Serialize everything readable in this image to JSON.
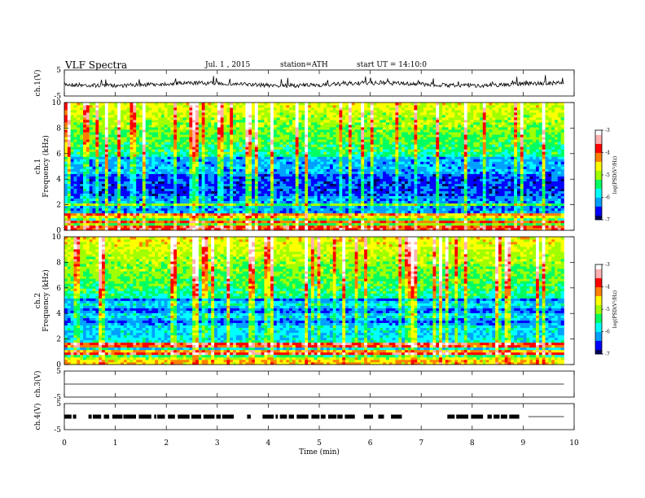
{
  "header": {
    "title": "VLF Spectra",
    "date": "Jul. 1 , 2015",
    "station": "station=ATH",
    "start": "start UT = 14:10:0"
  },
  "chart_data": [
    {
      "type": "line",
      "panel": "ch1-waveform",
      "ylabel": "ch.1(V)",
      "y_ticks": [
        "5",
        "-5"
      ],
      "ylim": [
        -5,
        5
      ],
      "xlim": [
        0,
        10
      ],
      "data_end_min": 9.8,
      "baseline_v": -0.5,
      "color": "#000000"
    },
    {
      "type": "heatmap",
      "panel": "ch1-spectrogram",
      "ylabel": "ch.1 Frequency (kHz)",
      "y_ticks": [
        "0",
        "2",
        "4",
        "6",
        "8",
        "10"
      ],
      "ylim": [
        0,
        10
      ],
      "xlim": [
        0,
        10
      ],
      "data_end_min": 9.8,
      "colorbar_label": "log(PSD(V²/Hz)",
      "colorbar_ticks": [
        "-3",
        "-4",
        "-5",
        "-6",
        "-7"
      ],
      "colorbar_range": [
        -7,
        -3
      ]
    },
    {
      "type": "heatmap",
      "panel": "ch2-spectrogram",
      "ylabel": "ch.2 Frequency (kHz)",
      "y_ticks": [
        "0",
        "2",
        "4",
        "6",
        "8",
        "10"
      ],
      "ylim": [
        0,
        10
      ],
      "xlim": [
        0,
        10
      ],
      "data_end_min": 9.8,
      "colorbar_label": "log(PSD(V²/Hz)",
      "colorbar_ticks": [
        "-3",
        "-4",
        "-5",
        "-6",
        "-7"
      ],
      "colorbar_range": [
        -7,
        -3
      ]
    },
    {
      "type": "line",
      "panel": "ch3-waveform",
      "ylabel": "ch.3(V)",
      "y_ticks": [
        "5",
        "-5"
      ],
      "ylim": [
        -5,
        5
      ],
      "xlim": [
        0,
        10
      ],
      "data_end_min": 9.8,
      "baseline_v": 0,
      "color": "#000000"
    },
    {
      "type": "line",
      "panel": "ch4-waveform",
      "ylabel": "ch.4(V)",
      "y_ticks": [
        "5",
        "-5"
      ],
      "ylim": [
        -5,
        5
      ],
      "xlim": [
        0,
        10
      ],
      "data_end_min": 9.8,
      "baseline_v": 0,
      "gap_end_min": 9.1,
      "color": "#000000"
    }
  ],
  "x_axis": {
    "label": "Time (min)",
    "ticks": [
      "0",
      "1",
      "2",
      "3",
      "4",
      "5",
      "6",
      "7",
      "8",
      "9",
      "10"
    ]
  },
  "colorscale": [
    "#000060",
    "#0000ff",
    "#00a0ff",
    "#00ffff",
    "#00ff60",
    "#a0ff00",
    "#ffff00",
    "#ff8000",
    "#ff0000",
    "#ffb0b0",
    "#ffffff"
  ]
}
